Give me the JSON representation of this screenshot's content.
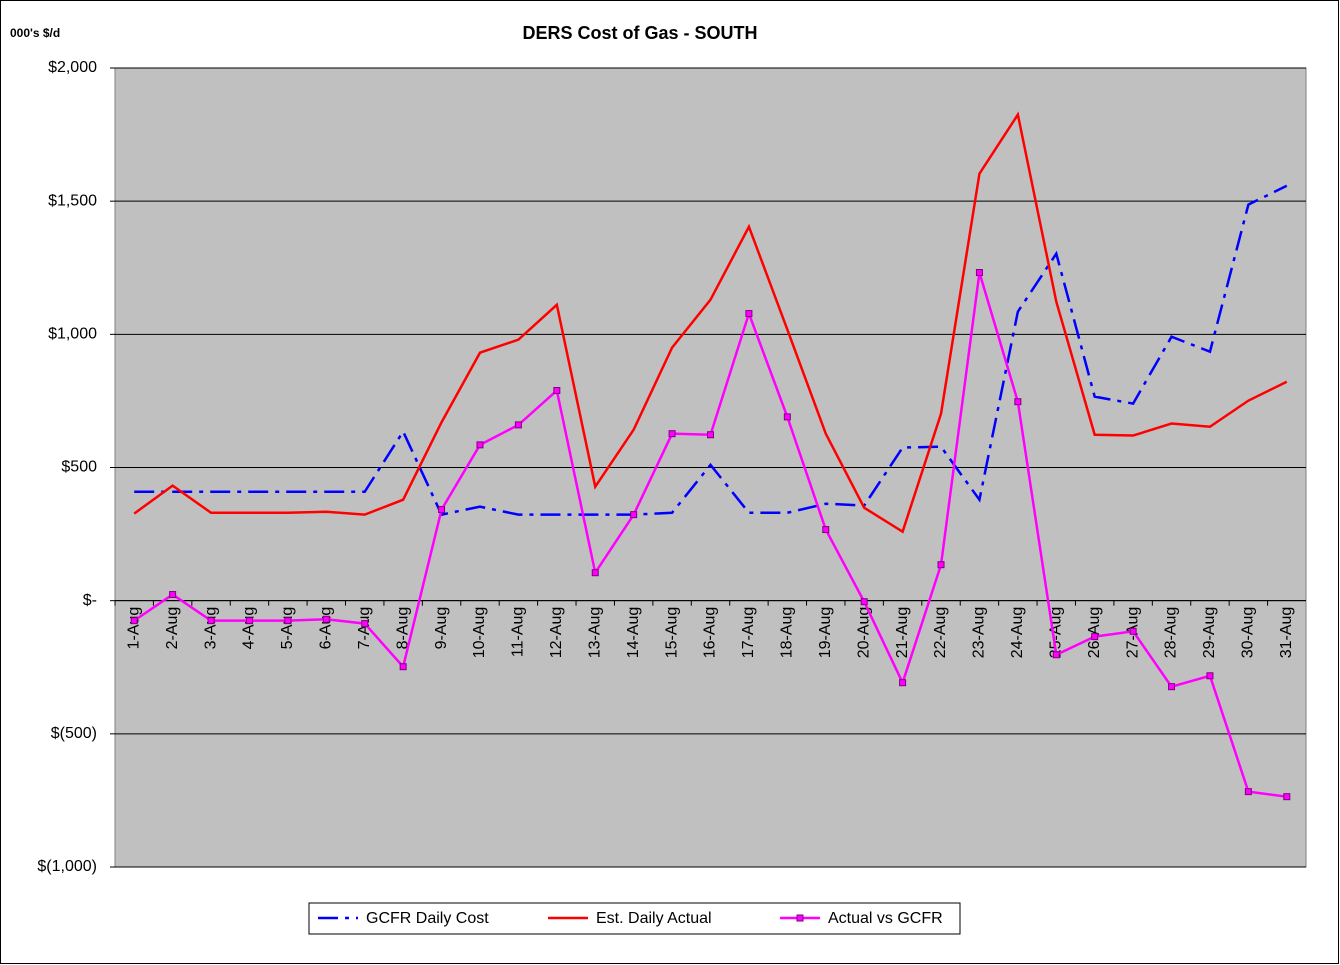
{
  "chart_data": {
    "type": "line",
    "title": "DERS Cost of Gas - SOUTH",
    "y_unit_label": "000's $/d",
    "categories": [
      "1-Aug",
      "2-Aug",
      "3-Aug",
      "4-Aug",
      "5-Aug",
      "6-Aug",
      "7-Aug",
      "8-Aug",
      "9-Aug",
      "10-Aug",
      "11-Aug",
      "12-Aug",
      "13-Aug",
      "14-Aug",
      "15-Aug",
      "16-Aug",
      "17-Aug",
      "18-Aug",
      "19-Aug",
      "20-Aug",
      "21-Aug",
      "22-Aug",
      "23-Aug",
      "24-Aug",
      "25-Aug",
      "26-Aug",
      "27-Aug",
      "28-Aug",
      "29-Aug",
      "30-Aug",
      "31-Aug"
    ],
    "series": [
      {
        "name": "GCFR Daily Cost",
        "color": "#0000ff",
        "style": "dash-dot",
        "values": [
          409,
          409,
          409,
          409,
          409,
          409,
          409,
          635,
          323,
          353,
          323,
          323,
          323,
          323,
          330,
          510,
          330,
          330,
          364,
          357,
          575,
          578,
          379,
          1085,
          1303,
          766,
          740,
          991,
          935,
          1487,
          1558
        ]
      },
      {
        "name": "Est. Daily Actual",
        "color": "#ff0000",
        "style": "solid",
        "values": [
          327,
          432,
          330,
          330,
          330,
          334,
          323,
          379,
          670,
          931,
          980,
          1111,
          428,
          642,
          950,
          1130,
          1404,
          1018,
          627,
          349,
          259,
          702,
          1603,
          1825,
          1123,
          623,
          620,
          665,
          653,
          751,
          822
        ]
      },
      {
        "name": "Actual vs GCFR",
        "color": "#ff00ff",
        "style": "solid-markers",
        "values": [
          -75,
          23,
          -75,
          -75,
          -75,
          -70,
          -86,
          -248,
          342,
          585,
          660,
          789,
          105,
          323,
          627,
          623,
          1078,
          690,
          267,
          -4,
          -308,
          135,
          1232,
          747,
          -203,
          -135,
          -115,
          -323,
          -282,
          -717,
          -736
        ]
      }
    ],
    "ylim": [
      -1000,
      2000
    ],
    "yticks": [
      {
        "value": -1000,
        "label": "$(1,000)"
      },
      {
        "value": -500,
        "label": "$(500)"
      },
      {
        "value": 0,
        "label": "$-"
      },
      {
        "value": 500,
        "label": "$500"
      },
      {
        "value": 1000,
        "label": "$1,000"
      },
      {
        "value": 1500,
        "label": "$1,500"
      },
      {
        "value": 2000,
        "label": "$2,000"
      }
    ],
    "grid": true,
    "legend": "bottom"
  }
}
